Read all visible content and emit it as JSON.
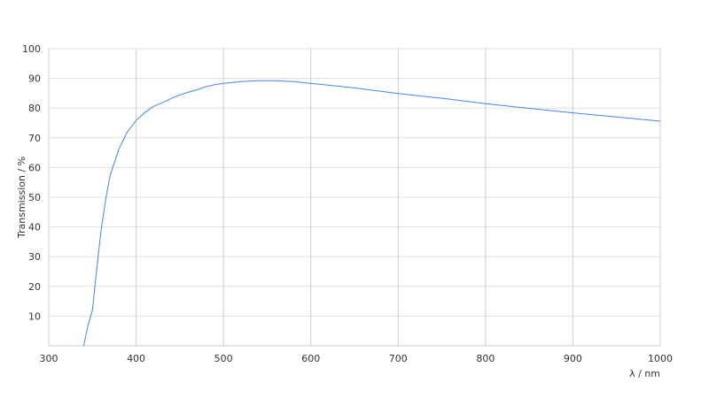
{
  "chart_data": {
    "type": "line",
    "title": "",
    "xlabel": "λ / nm",
    "ylabel": "Transmission / %",
    "xlim": [
      300,
      1000
    ],
    "ylim": [
      0,
      100
    ],
    "xticks": [
      300,
      400,
      500,
      600,
      700,
      800,
      900,
      1000
    ],
    "yticks": [
      10,
      20,
      30,
      40,
      50,
      60,
      70,
      80,
      90,
      100
    ],
    "grid": true,
    "line_color": "#4285f4",
    "series": [
      {
        "x": [
          340,
          345,
          350,
          355,
          360,
          365,
          370,
          375,
          380,
          390,
          400,
          410,
          420,
          430,
          440,
          450,
          460,
          470,
          480,
          490,
          500,
          520,
          540,
          560,
          580,
          600,
          650,
          700,
          750,
          800,
          850,
          900,
          950,
          1000
        ],
        "y": [
          0,
          7,
          12,
          26,
          39,
          49,
          57,
          61.5,
          66,
          72,
          75.8,
          78.5,
          80.6,
          81.8,
          83.2,
          84.4,
          85.4,
          86.2,
          87.2,
          87.9,
          88.3,
          88.9,
          89.2,
          89.2,
          88.9,
          88.3,
          86.8,
          84.9,
          83.3,
          81.5,
          79.9,
          78.4,
          77,
          75.6
        ]
      }
    ]
  }
}
